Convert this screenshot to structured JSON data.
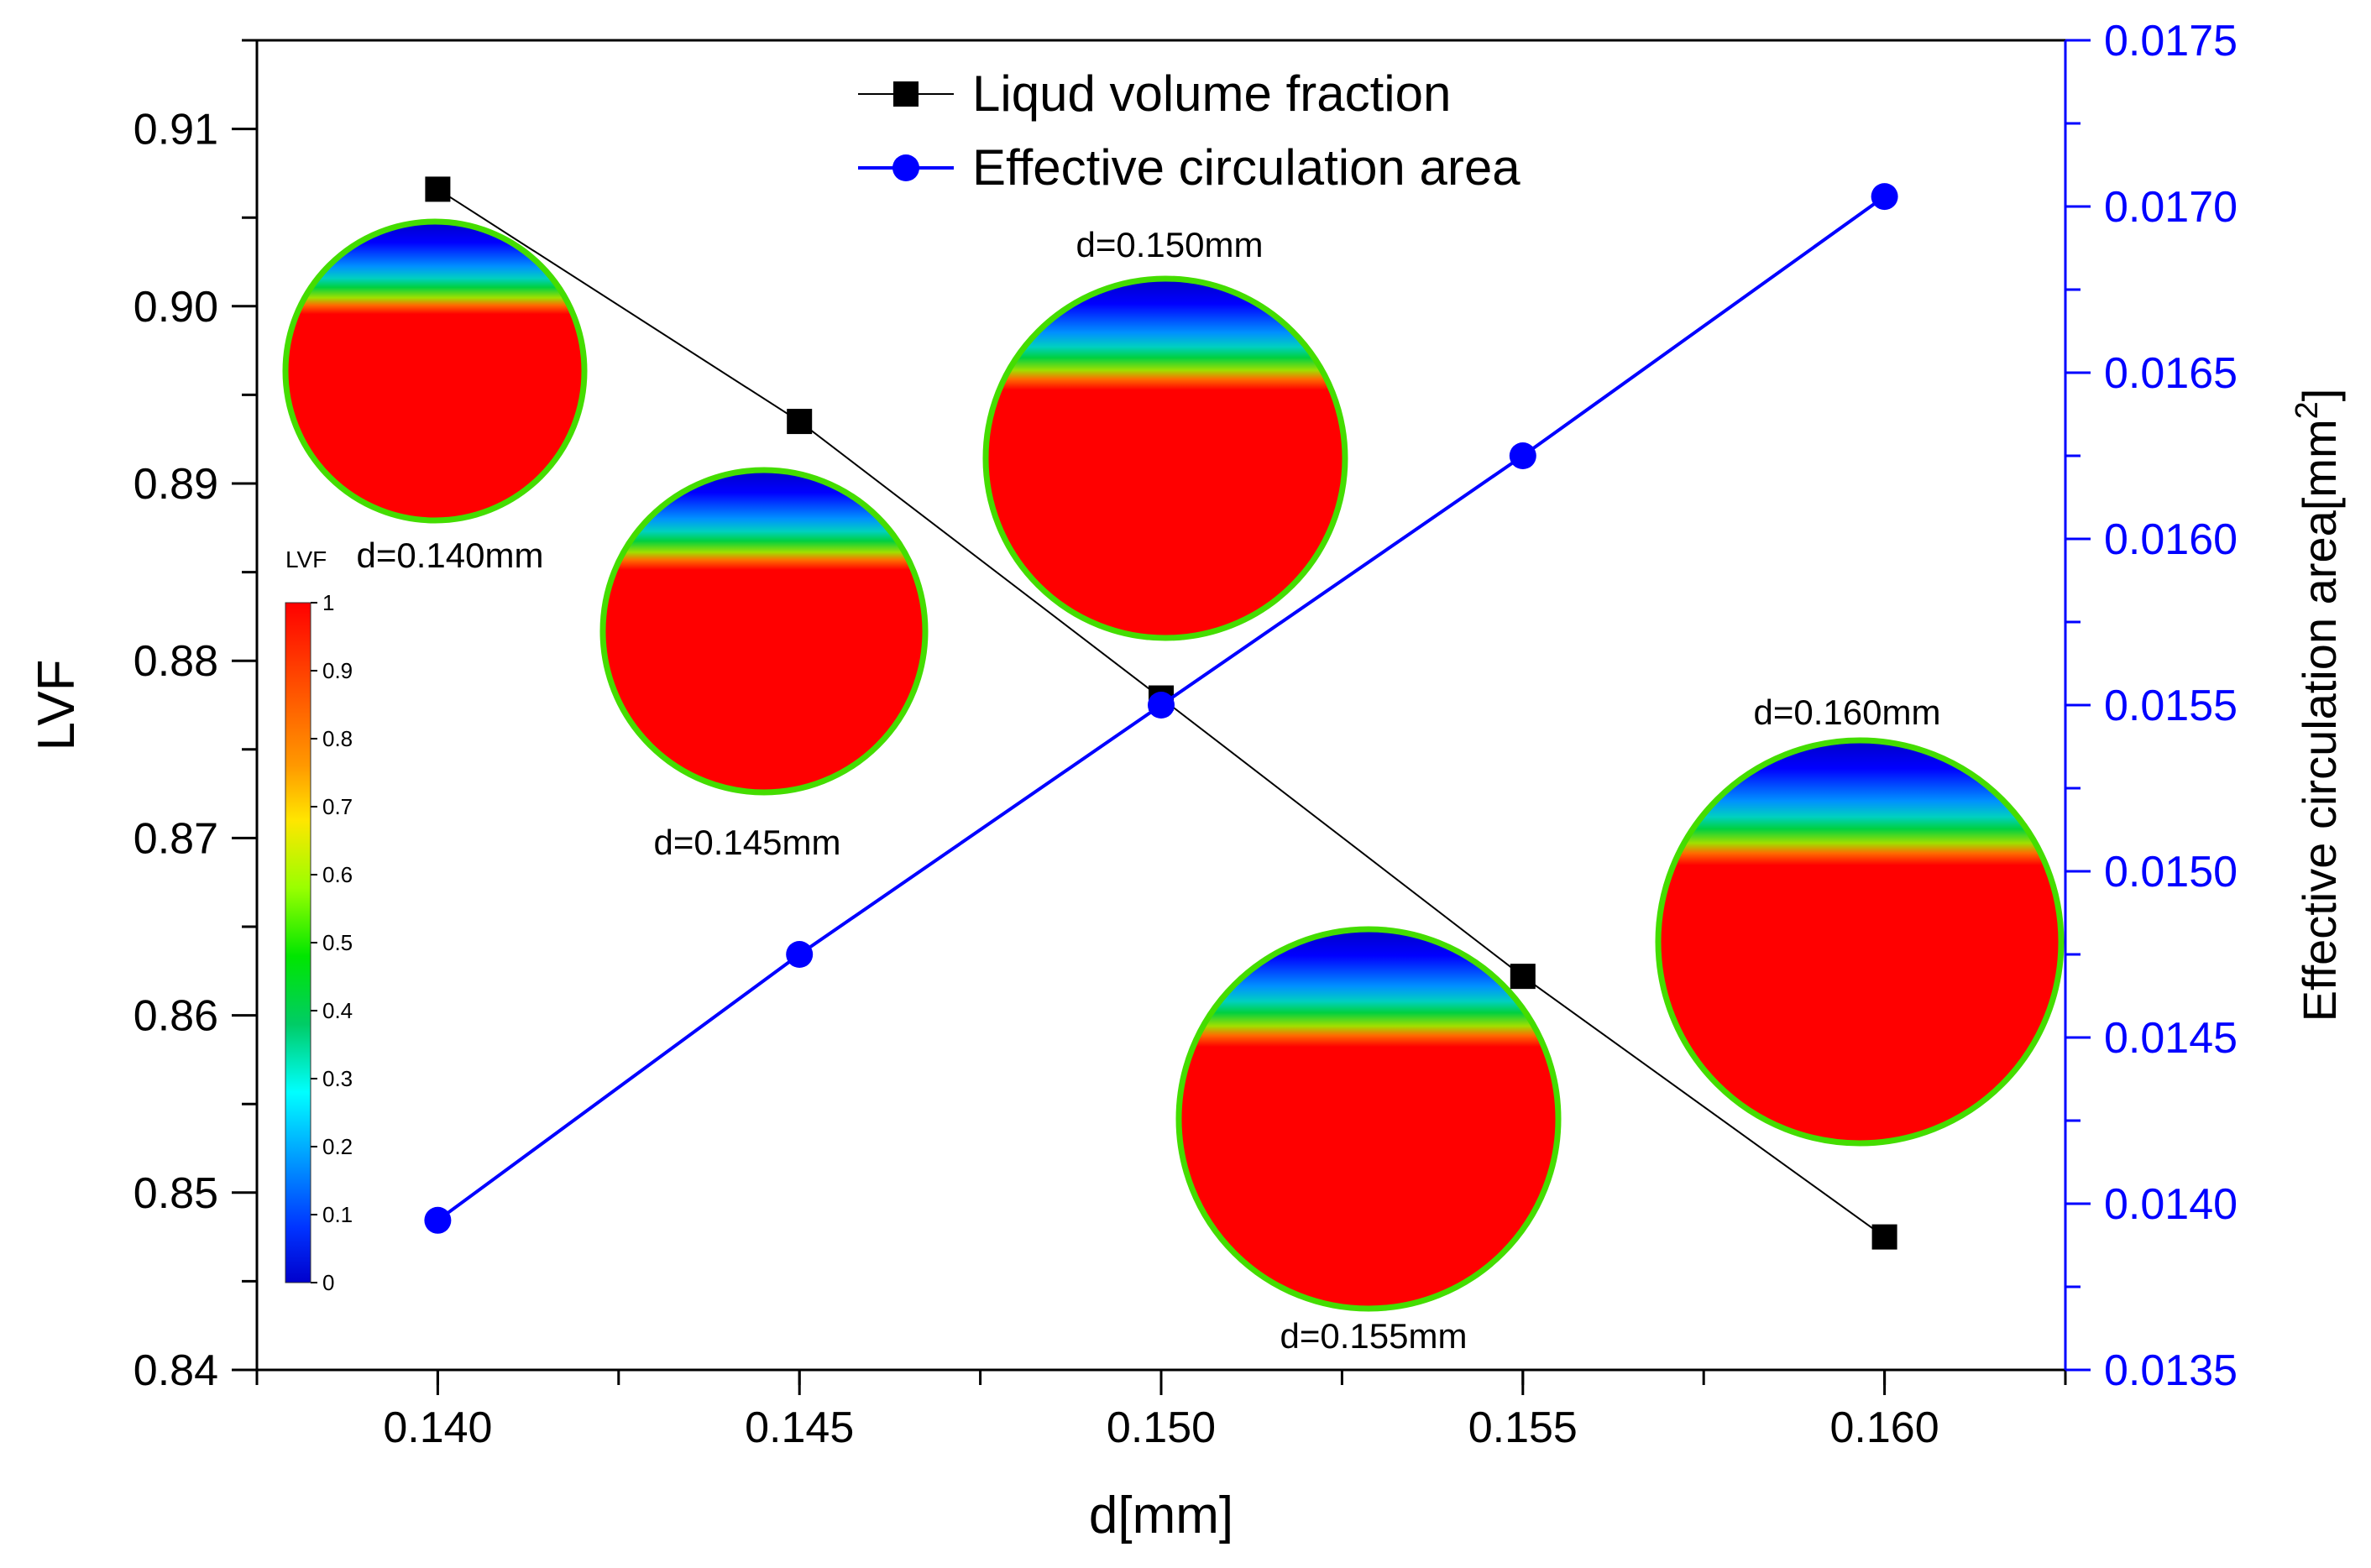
{
  "chart_data": {
    "type": "line",
    "x": [
      0.14,
      0.145,
      0.15,
      0.155,
      0.16
    ],
    "xlabel": "d[mm]",
    "xlim": [
      0.1375,
      0.1625
    ],
    "xticks": [
      "0.140",
      "0.145",
      "0.150",
      "0.155",
      "0.160"
    ],
    "ylabel_left": "LVF",
    "ylim_left": [
      0.84,
      0.915
    ],
    "yticks_left": [
      "0.84",
      "0.85",
      "0.86",
      "0.87",
      "0.88",
      "0.89",
      "0.90",
      "0.91"
    ],
    "ylabel_right": "Effective circulation area[mm",
    "ylabel_right_sup": "2",
    "ylabel_right_close": "]",
    "ylim_right": [
      0.0135,
      0.0175
    ],
    "yticks_right": [
      "0.0135",
      "0.0140",
      "0.0145",
      "0.0150",
      "0.0155",
      "0.0160",
      "0.0165",
      "0.0170",
      "0.0175"
    ],
    "series": [
      {
        "name": "Liqud volume fraction",
        "axis": "left",
        "marker": "square",
        "color": "#000000",
        "values": [
          0.9066,
          0.8935,
          0.8779,
          0.8622,
          0.8475
        ]
      },
      {
        "name": "Effective circulation area",
        "axis": "right",
        "marker": "circle",
        "color": "#0000ff",
        "values": [
          0.01395,
          0.01475,
          0.0155,
          0.01625,
          0.01703
        ]
      }
    ],
    "legend_position": "top-center",
    "insets": [
      {
        "label": "d=0.140mm"
      },
      {
        "label": "d=0.145mm"
      },
      {
        "label": "d=0.150mm"
      },
      {
        "label": "d=0.155mm"
      },
      {
        "label": "d=0.160mm"
      }
    ],
    "colorbar": {
      "title": "LVF",
      "ticks": [
        "1",
        "0.9",
        "0.8",
        "0.7",
        "0.6",
        "0.5",
        "0.4",
        "0.3",
        "0.2",
        "0.1",
        "0"
      ],
      "colors": [
        "#ff0000",
        "#ff4d00",
        "#ff9900",
        "#ffe600",
        "#99ff00",
        "#00e600",
        "#00cc66",
        "#00ffff",
        "#0099ff",
        "#0033ff",
        "#0000cc"
      ]
    },
    "axis_color_right": "#0000ff"
  }
}
